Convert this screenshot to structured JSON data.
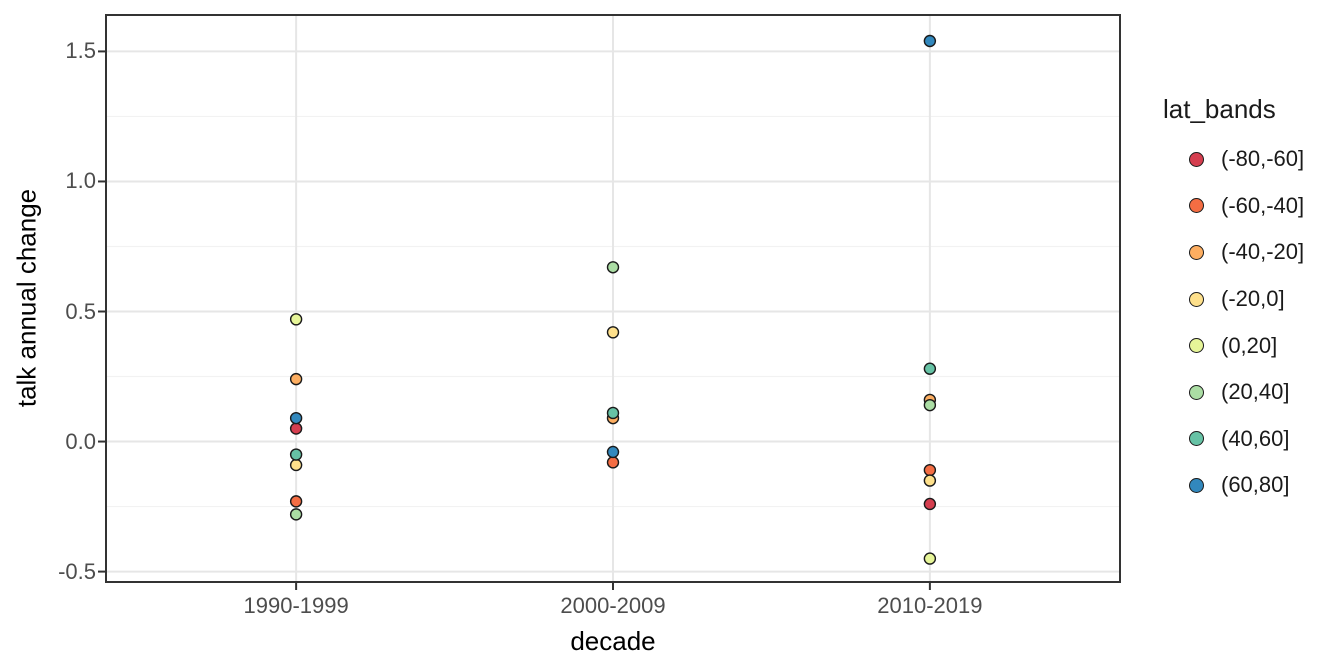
{
  "chart_data": {
    "type": "scatter",
    "title": "",
    "xlabel": "decade",
    "ylabel": "talk annual change",
    "legend_title": "lat_bands",
    "legend_position": "right",
    "categories": [
      "1990-1999",
      "2000-2009",
      "2010-2019"
    ],
    "x_positions": [
      0.1875,
      0.5,
      0.8125
    ],
    "ylim": [
      -0.54,
      1.64
    ],
    "yticks": [
      -0.5,
      0.0,
      0.5,
      1.0,
      1.5
    ],
    "ytick_labels": [
      "-0.5",
      "0.0",
      "0.5",
      "1.0",
      "1.5"
    ],
    "minor_yticks": [
      -0.25,
      0.25,
      0.75,
      1.25
    ],
    "grid": true,
    "point_outline": "#1a1a1a",
    "series": [
      {
        "name": "(-80,-60]",
        "color": "#d53e4f",
        "values": [
          0.05,
          null,
          -0.24
        ]
      },
      {
        "name": "(-60,-40]",
        "color": "#f46d43",
        "values": [
          -0.23,
          -0.08,
          -0.11
        ]
      },
      {
        "name": "(-40,-20]",
        "color": "#fdae61",
        "values": [
          0.24,
          0.09,
          0.16
        ]
      },
      {
        "name": "(-20,0]",
        "color": "#fee08b",
        "values": [
          -0.09,
          0.42,
          -0.15
        ]
      },
      {
        "name": "(0,20]",
        "color": "#e6f598",
        "values": [
          0.47,
          null,
          -0.45
        ]
      },
      {
        "name": "(20,40]",
        "color": "#abdda4",
        "values": [
          -0.28,
          0.67,
          0.14
        ]
      },
      {
        "name": "(40,60]",
        "color": "#66c2a5",
        "values": [
          -0.05,
          0.11,
          0.28
        ]
      },
      {
        "name": "(60,80]",
        "color": "#3288bd",
        "values": [
          0.09,
          -0.04,
          1.54
        ]
      }
    ],
    "colors": {
      "background": "#ffffff",
      "panel_background": "#ffffff",
      "grid_major": "#e6e6e6",
      "grid_minor": "#f2f2f2",
      "panel_border": "#333333",
      "tick": "#333333",
      "axis_text": "#4d4d4d",
      "title_text": "#000000"
    }
  }
}
